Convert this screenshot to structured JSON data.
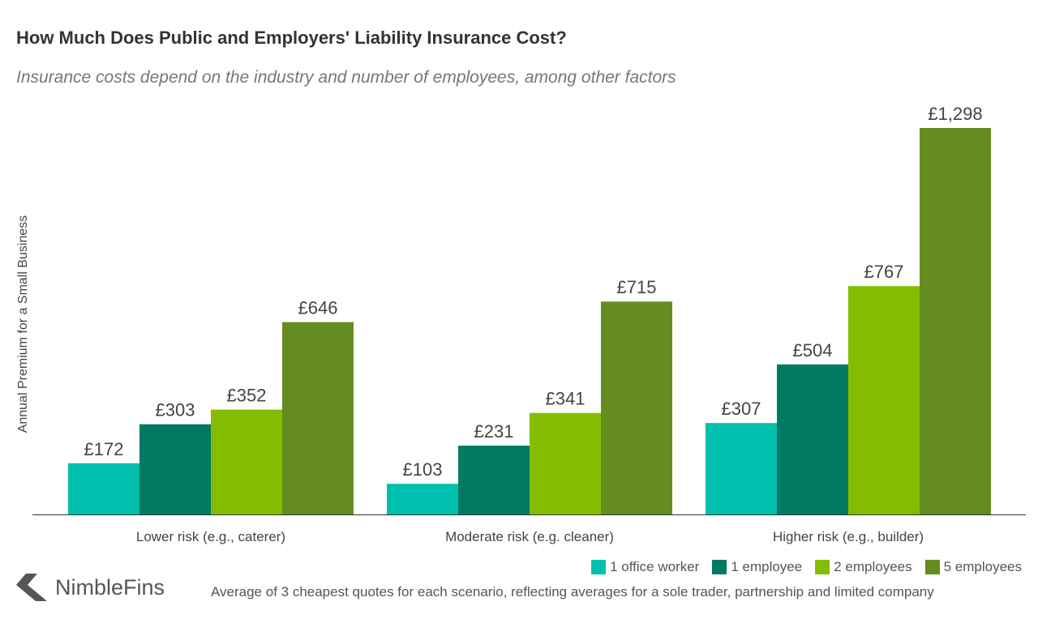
{
  "chart_data": {
    "type": "bar",
    "title": "How Much Does Public and Employers' Liability Insurance Cost?",
    "subtitle": "Insurance costs depend on the industry and number of employees, among other factors",
    "ylabel": "Annual Premium for a Small Business",
    "xlabel": "",
    "categories": [
      "Lower risk (e.g., caterer)",
      "Moderate risk (e.g. cleaner)",
      "Higher risk (e.g., builder)"
    ],
    "series": [
      {
        "name": "1 office worker",
        "color": "#00c0ad",
        "values": [
          172,
          103,
          307
        ],
        "labels": [
          "£172",
          "£103",
          "£307"
        ]
      },
      {
        "name": "1 employee",
        "color": "#007a63",
        "values": [
          303,
          231,
          504
        ],
        "labels": [
          "£303",
          "£231",
          "£504"
        ]
      },
      {
        "name": "2 employees",
        "color": "#84bd00",
        "values": [
          352,
          341,
          767
        ],
        "labels": [
          "£352",
          "£341",
          "£767"
        ]
      },
      {
        "name": "5 employees",
        "color": "#658c1e",
        "values": [
          646,
          715,
          1298
        ],
        "labels": [
          "£646",
          "£715",
          "£1,298"
        ]
      }
    ],
    "ylim": [
      0,
      1300
    ],
    "grid": false,
    "legend_position": "bottom-right",
    "note": "Average of 3 cheapest quotes for each scenario, reflecting averages for a sole trader, partnership and limited company"
  },
  "brand": {
    "name": "NimbleFins",
    "icon": "chevron-left-logo-icon"
  }
}
